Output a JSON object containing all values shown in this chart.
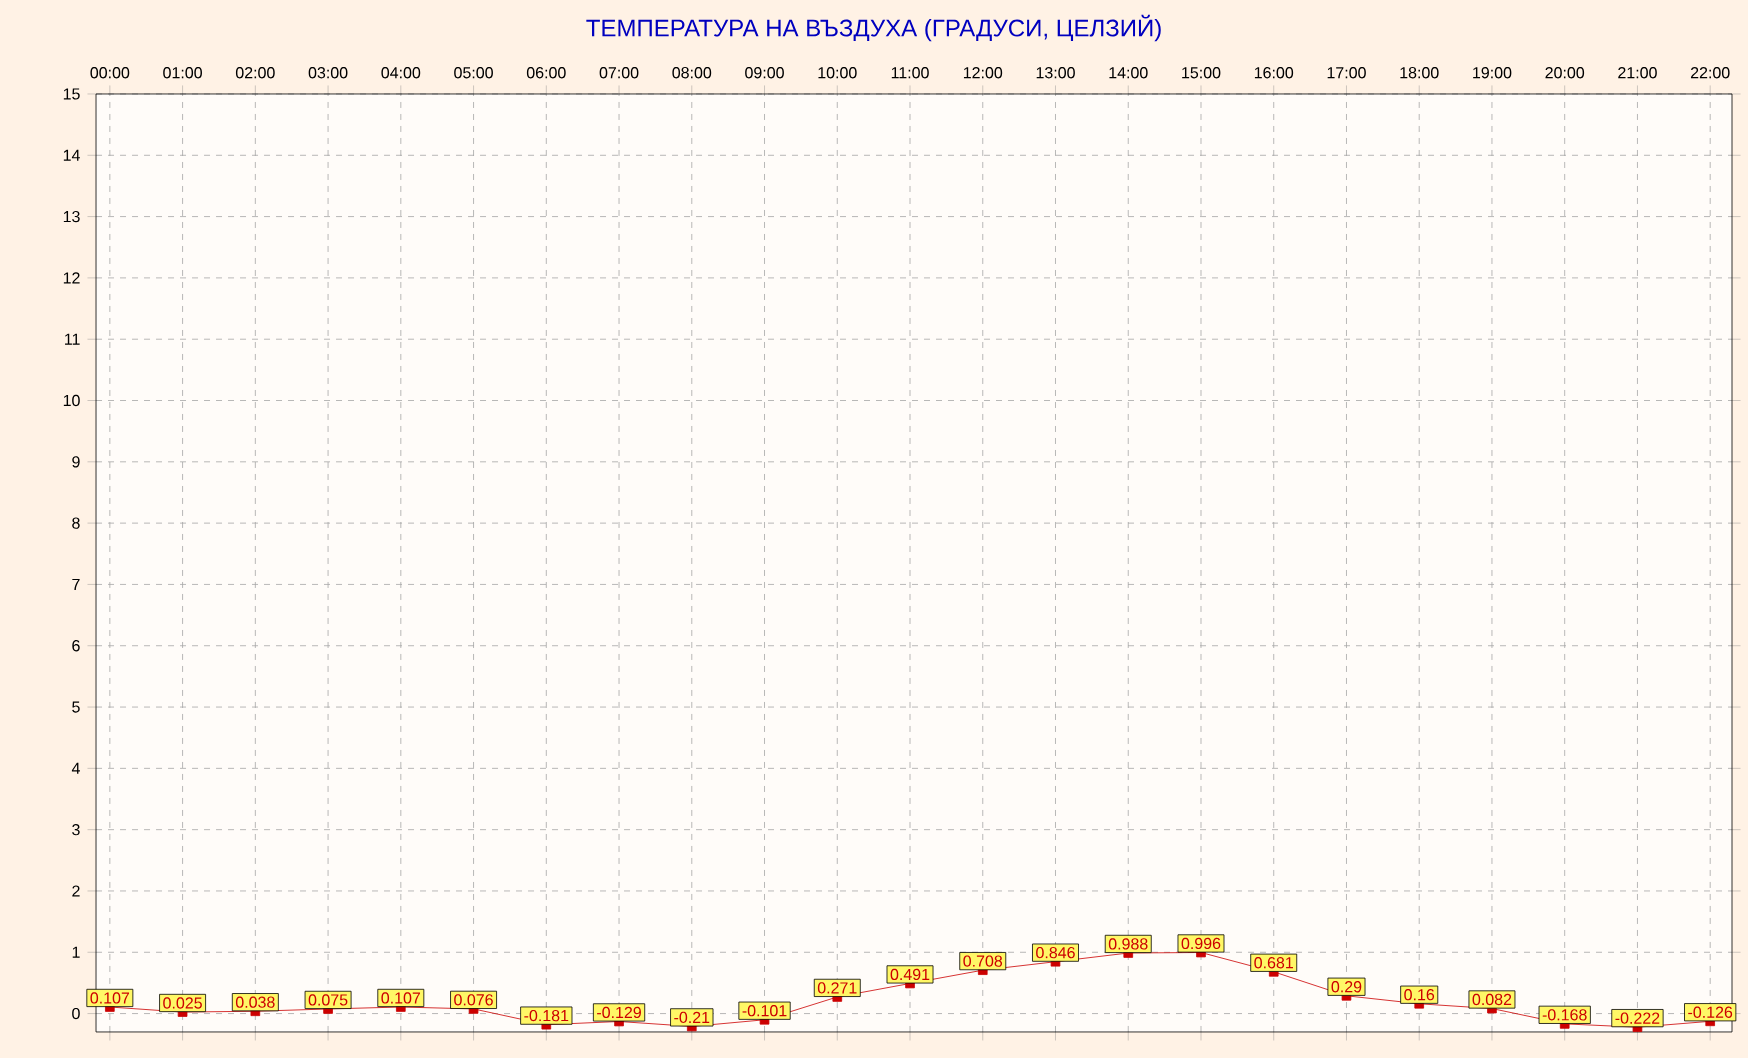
{
  "chart_data": {
    "type": "line",
    "title": "ТЕМПЕРАТУРА НА ВЪЗДУХА  (ГРАДУСИ, ЦЕЛЗИЙ)",
    "categories": [
      "00:00",
      "01:00",
      "02:00",
      "03:00",
      "04:00",
      "05:00",
      "06:00",
      "07:00",
      "08:00",
      "09:00",
      "10:00",
      "11:00",
      "12:00",
      "13:00",
      "14:00",
      "15:00",
      "16:00",
      "17:00",
      "18:00",
      "19:00",
      "20:00",
      "21:00",
      "22:00"
    ],
    "values": [
      0.107,
      0.025,
      0.038,
      0.075,
      0.107,
      0.076,
      -0.181,
      -0.129,
      -0.21,
      -0.101,
      0.271,
      0.491,
      0.708,
      0.846,
      0.988,
      0.996,
      0.681,
      0.29,
      0.16,
      0.082,
      -0.168,
      -0.222,
      -0.126
    ],
    "color": "#cc0000",
    "ylim": [
      -0.3,
      15
    ],
    "yticks": [
      0,
      1,
      2,
      3,
      4,
      5,
      6,
      7,
      8,
      9,
      10,
      11,
      12,
      13,
      14,
      15
    ],
    "grid": true,
    "marker": "square",
    "line_style": "solid",
    "data_labels": true
  }
}
